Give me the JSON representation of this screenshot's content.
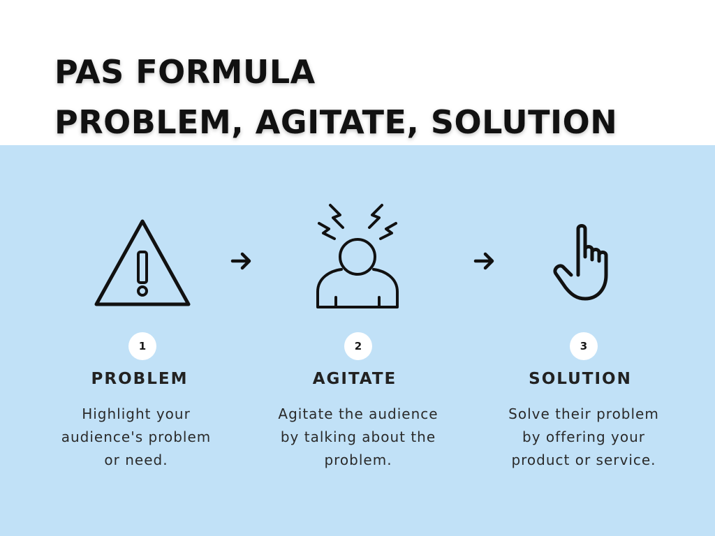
{
  "title": {
    "line1": "PAS FORMULA",
    "line2": "PROBLEM, AGITATE, SOLUTION"
  },
  "steps": [
    {
      "number": "1",
      "title": "PROBLEM",
      "description": "Highlight your audience's problem or need.",
      "icon": "warning-triangle-icon"
    },
    {
      "number": "2",
      "title": "AGITATE",
      "description": "Agitate the audience by talking about the problem.",
      "icon": "stressed-person-icon"
    },
    {
      "number": "3",
      "title": "SOLUTION",
      "description": "Solve their problem by offering your product or service.",
      "icon": "pointing-hand-icon"
    }
  ],
  "colors": {
    "background_panel": "#c1e1f7",
    "text": "#1a1a1a",
    "badge": "#ffffff"
  }
}
